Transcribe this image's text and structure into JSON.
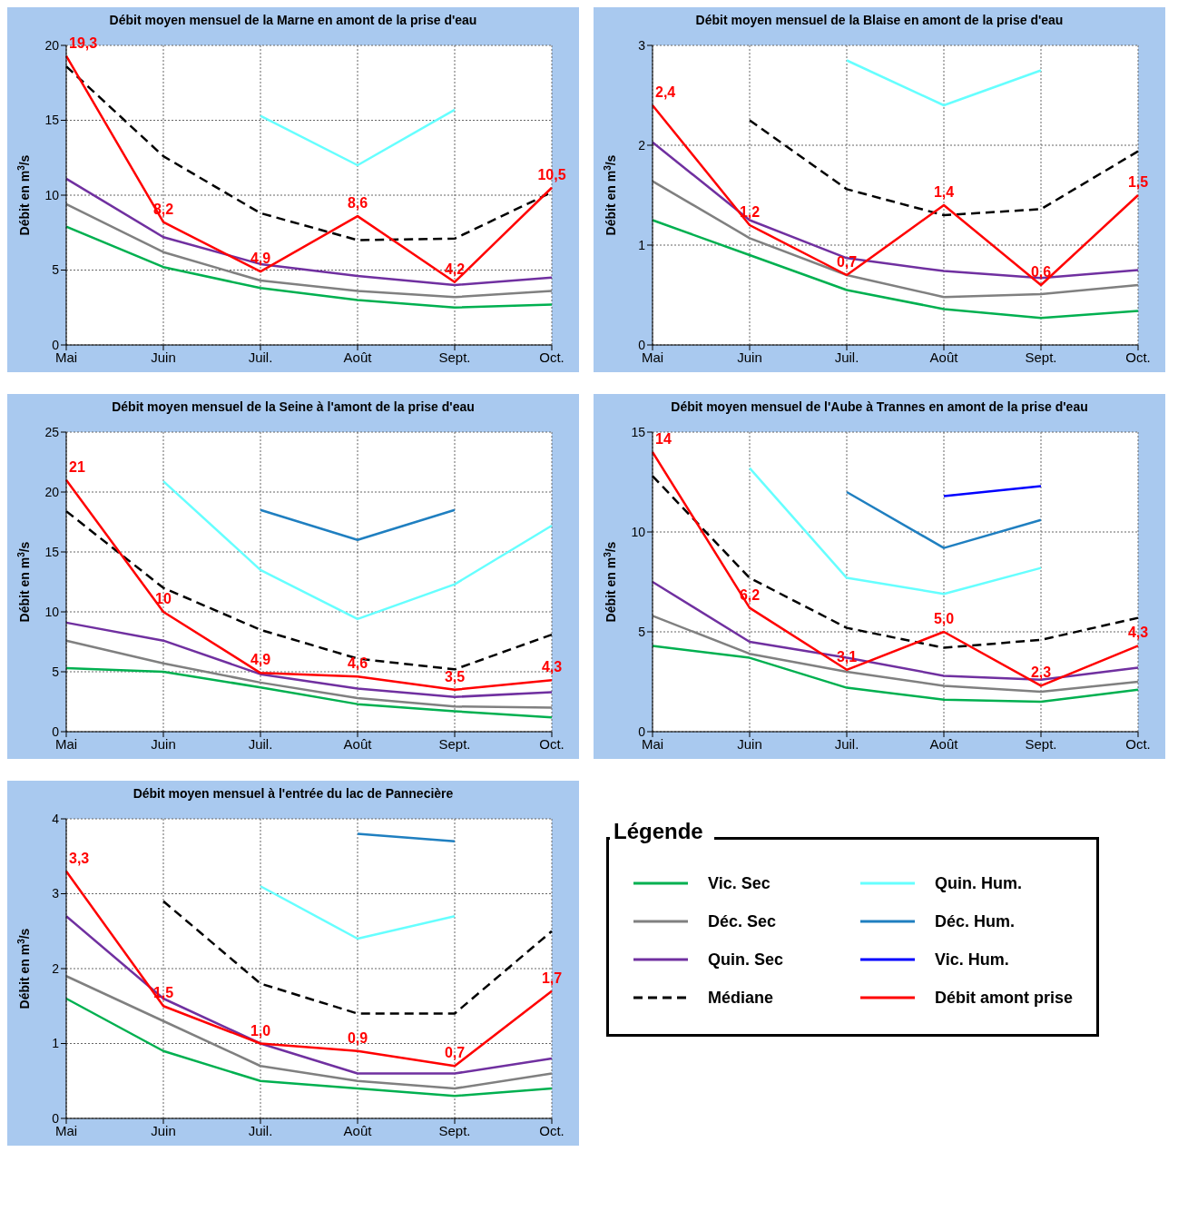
{
  "chart_data": [
    {
      "type": "line",
      "title": "Débit moyen mensuel de la Marne en amont de la prise d'eau",
      "ylabel": "Débit en m$^{3}$/s",
      "categories": [
        "Mai",
        "Juin",
        "Juil.",
        "Août",
        "Sept.",
        "Oct."
      ],
      "ylim": [
        0,
        20
      ],
      "yticks": [
        0,
        5,
        10,
        15,
        20
      ],
      "grid": true,
      "marker": "none",
      "series": [
        {
          "color": "#00b050",
          "values": [
            7.9,
            5.2,
            3.8,
            3.0,
            2.5,
            2.7
          ]
        },
        {
          "color": "#808080",
          "values": [
            9.4,
            6.2,
            4.3,
            3.6,
            3.2,
            3.6
          ]
        },
        {
          "color": "#7030a0",
          "values": [
            11.1,
            7.2,
            5.4,
            4.6,
            4.0,
            4.5
          ]
        },
        {
          "color": "#000000",
          "line_style": "dashed",
          "values": [
            18.6,
            12.6,
            8.8,
            7.0,
            7.1,
            10.2
          ]
        },
        {
          "color": "#66ffff",
          "values": [
            null,
            null,
            15.3,
            12.0,
            15.7,
            null
          ]
        },
        {
          "color": "#ff0000",
          "values": [
            19.3,
            8.2,
            4.9,
            8.6,
            4.2,
            10.5
          ],
          "value_labels": [
            "19,3",
            "8,2",
            "4,9",
            "8,6",
            "4,2",
            "10,5"
          ]
        }
      ]
    },
    {
      "type": "line",
      "title": "Débit moyen mensuel de la Blaise en amont de la prise d'eau",
      "ylabel": "Débit en m$^{3}$/s",
      "categories": [
        "Mai",
        "Juin",
        "Juil.",
        "Août",
        "Sept.",
        "Oct."
      ],
      "ylim": [
        0,
        3
      ],
      "yticks": [
        0,
        1,
        2,
        3
      ],
      "grid": true,
      "marker": "none",
      "series": [
        {
          "color": "#00b050",
          "values": [
            1.25,
            0.9,
            0.55,
            0.36,
            0.27,
            0.34
          ]
        },
        {
          "color": "#808080",
          "values": [
            1.64,
            1.07,
            0.7,
            0.48,
            0.51,
            0.6
          ]
        },
        {
          "color": "#7030a0",
          "values": [
            2.03,
            1.25,
            0.87,
            0.74,
            0.67,
            0.75
          ]
        },
        {
          "color": "#000000",
          "line_style": "dashed",
          "values": [
            null,
            2.25,
            1.56,
            1.3,
            1.36,
            1.94
          ]
        },
        {
          "color": "#66ffff",
          "values": [
            null,
            null,
            2.85,
            2.4,
            2.75,
            null
          ]
        },
        {
          "color": "#ff0000",
          "values": [
            2.4,
            1.2,
            0.7,
            1.4,
            0.6,
            1.5
          ],
          "value_labels": [
            "2,4",
            "1,2",
            "0,7",
            "1,4",
            "0,6",
            "1,5"
          ]
        }
      ]
    },
    {
      "type": "line",
      "title": "Débit moyen mensuel de la Seine à l'amont de la prise d'eau",
      "ylabel": "Débit en m$^{3}$/s",
      "categories": [
        "Mai",
        "Juin",
        "Juil.",
        "Août",
        "Sept.",
        "Oct."
      ],
      "ylim": [
        0,
        25
      ],
      "yticks": [
        0,
        5,
        10,
        15,
        20,
        25
      ],
      "grid": true,
      "marker": "none",
      "series": [
        {
          "color": "#00b050",
          "values": [
            5.3,
            5.0,
            3.7,
            2.3,
            1.7,
            1.2
          ]
        },
        {
          "color": "#808080",
          "values": [
            7.6,
            5.7,
            4.1,
            2.8,
            2.1,
            2.0
          ]
        },
        {
          "color": "#7030a0",
          "values": [
            9.1,
            7.6,
            4.8,
            3.6,
            2.9,
            3.3
          ]
        },
        {
          "color": "#000000",
          "line_style": "dashed",
          "values": [
            18.4,
            12.0,
            8.5,
            6.1,
            5.2,
            8.1
          ]
        },
        {
          "color": "#66ffff",
          "values": [
            null,
            20.9,
            13.5,
            9.4,
            12.3,
            17.2
          ]
        },
        {
          "color": "#1f7fc0",
          "values": [
            null,
            null,
            18.5,
            16.0,
            18.5,
            null
          ]
        },
        {
          "color": "#ff0000",
          "values": [
            21,
            10,
            4.9,
            4.6,
            3.5,
            4.3
          ],
          "value_labels": [
            "21",
            "10",
            "4,9",
            "4,6",
            "3,5",
            "4,3"
          ]
        }
      ]
    },
    {
      "type": "line",
      "title": "Débit moyen mensuel  de l'Aube à Trannes en amont de la prise d'eau",
      "ylabel": "Débit en m$^{3}$/s",
      "categories": [
        "Mai",
        "Juin",
        "Juil.",
        "Août",
        "Sept.",
        "Oct."
      ],
      "ylim": [
        0,
        15
      ],
      "yticks": [
        0,
        5,
        10,
        15
      ],
      "grid": true,
      "marker": "none",
      "series": [
        {
          "color": "#00b050",
          "values": [
            4.3,
            3.7,
            2.2,
            1.6,
            1.5,
            2.1
          ]
        },
        {
          "color": "#808080",
          "values": [
            5.8,
            3.9,
            3.0,
            2.3,
            2.0,
            2.5
          ]
        },
        {
          "color": "#7030a0",
          "values": [
            7.5,
            4.5,
            3.7,
            2.8,
            2.6,
            3.2
          ]
        },
        {
          "color": "#000000",
          "line_style": "dashed",
          "values": [
            12.8,
            7.7,
            5.2,
            4.2,
            4.6,
            5.7
          ]
        },
        {
          "color": "#66ffff",
          "values": [
            null,
            13.2,
            7.7,
            6.9,
            8.2,
            null
          ]
        },
        {
          "color": "#1f7fc0",
          "values": [
            null,
            null,
            12.0,
            9.2,
            10.6,
            null
          ]
        },
        {
          "color": "#0000ff",
          "values": [
            null,
            null,
            null,
            11.8,
            12.3,
            null
          ]
        },
        {
          "color": "#ff0000",
          "values": [
            14,
            6.2,
            3.1,
            5.0,
            2.3,
            4.3
          ],
          "value_labels": [
            "14",
            "6,2",
            "3,1",
            "5,0",
            "2,3",
            "4,3"
          ]
        }
      ]
    },
    {
      "type": "line",
      "title": "Débit moyen mensuel à l'entrée du lac de Pannecière",
      "ylabel": "Débit en m$^{3}$/s",
      "categories": [
        "Mai",
        "Juin",
        "Juil.",
        "Août",
        "Sept.",
        "Oct."
      ],
      "ylim": [
        0,
        4
      ],
      "yticks": [
        0,
        1,
        2,
        3,
        4
      ],
      "grid": true,
      "marker": "none",
      "legend": "right",
      "legend_title": "Légende",
      "series": [
        {
          "name": "Vic. Sec",
          "color": "#00b050",
          "values": [
            1.6,
            0.9,
            0.5,
            0.4,
            0.3,
            0.4
          ]
        },
        {
          "name": "Déc. Sec",
          "color": "#808080",
          "values": [
            1.9,
            1.3,
            0.7,
            0.5,
            0.4,
            0.6
          ]
        },
        {
          "name": "Quin. Sec",
          "color": "#7030a0",
          "values": [
            2.7,
            1.6,
            1.0,
            0.6,
            0.6,
            0.8
          ]
        },
        {
          "name": "Médiane",
          "color": "#000000",
          "line_style": "dashed",
          "values": [
            null,
            2.9,
            1.8,
            1.4,
            1.4,
            2.5
          ]
        },
        {
          "name": "Quin. Hum.",
          "color": "#66ffff",
          "values": [
            null,
            null,
            3.1,
            2.4,
            2.7,
            null
          ]
        },
        {
          "name": "Déc. Hum.",
          "color": "#1f7fc0",
          "values": [
            null,
            null,
            null,
            3.8,
            3.7,
            null
          ]
        },
        {
          "name": "Vic. Hum.",
          "color": "#0000ff",
          "values": [
            null,
            null,
            null,
            null,
            null,
            null
          ]
        },
        {
          "name": "Débit amont prise",
          "color": "#ff0000",
          "values": [
            3.3,
            1.5,
            1.0,
            0.9,
            0.7,
            1.7
          ],
          "value_labels": [
            "3,3",
            "1,5",
            "1,0",
            "0,9",
            "0,7",
            "1,7"
          ]
        }
      ]
    }
  ]
}
